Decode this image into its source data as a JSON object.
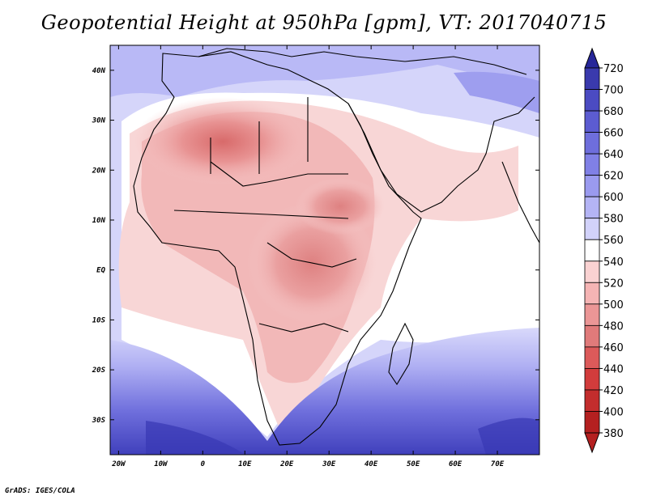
{
  "title": "Geopotential Height at 950hPa [gpm], VT: 2017040715",
  "footer": "GrADS: IGES/COLA",
  "map": {
    "lon_range": [
      -22,
      80
    ],
    "lat_range": [
      -37,
      45
    ],
    "lon_ticks": [
      {
        "value": -20,
        "label": "20W"
      },
      {
        "value": -10,
        "label": "10W"
      },
      {
        "value": 0,
        "label": "0"
      },
      {
        "value": 10,
        "label": "10E"
      },
      {
        "value": 20,
        "label": "20E"
      },
      {
        "value": 30,
        "label": "30E"
      },
      {
        "value": 40,
        "label": "40E"
      },
      {
        "value": 50,
        "label": "50E"
      },
      {
        "value": 60,
        "label": "60E"
      },
      {
        "value": 70,
        "label": "70E"
      }
    ],
    "lat_ticks": [
      {
        "value": 40,
        "label": "40N"
      },
      {
        "value": 30,
        "label": "30N"
      },
      {
        "value": 20,
        "label": "20N"
      },
      {
        "value": 10,
        "label": "10N"
      },
      {
        "value": 0,
        "label": "EQ"
      },
      {
        "value": -10,
        "label": "10S"
      },
      {
        "value": -20,
        "label": "20S"
      },
      {
        "value": -30,
        "label": "30S"
      }
    ]
  },
  "colorbar": {
    "levels": [
      "720",
      "700",
      "680",
      "660",
      "640",
      "620",
      "600",
      "580",
      "560",
      "540",
      "520",
      "500",
      "480",
      "460",
      "440",
      "420",
      "400",
      "380"
    ],
    "colors": [
      "#262699",
      "#3a3aad",
      "#4b4bc2",
      "#5c5cd1",
      "#6e6edc",
      "#8080e6",
      "#9a9aef",
      "#b4b4f5",
      "#d2d2fa",
      "#ffffff",
      "#fad2d2",
      "#f5b4b4",
      "#eb9696",
      "#e07a7a",
      "#dc5a5a",
      "#d23c3c",
      "#c32d2d",
      "#b42020"
    ]
  }
}
